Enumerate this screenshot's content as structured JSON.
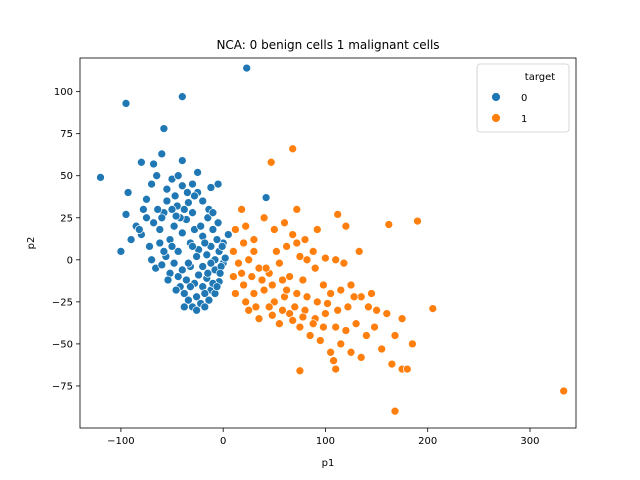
{
  "chart_data": {
    "type": "scatter",
    "title": "NCA: 0 benign cells 1 malignant cells",
    "xlabel": "p1",
    "ylabel": "p2",
    "xlim": [
      -140,
      345
    ],
    "ylim": [
      -100,
      120
    ],
    "xticks": [
      -100,
      0,
      100,
      200,
      300
    ],
    "yticks": [
      -75,
      -50,
      -25,
      0,
      25,
      50,
      75,
      100
    ],
    "grid": false,
    "legend": {
      "title": "target",
      "placement": "top-right",
      "entries": [
        {
          "label": "0",
          "color": "#1f77b4"
        },
        {
          "label": "1",
          "color": "#ff7f0e"
        }
      ]
    },
    "series": [
      {
        "name": "0",
        "color": "#1f77b4",
        "points": [
          [
            -120,
            49
          ],
          [
            -95,
            93
          ],
          [
            -40,
            97
          ],
          [
            23,
            114
          ],
          [
            -58,
            78
          ],
          [
            -93,
            40
          ],
          [
            -80,
            58
          ],
          [
            -68,
            57
          ],
          [
            -60,
            63
          ],
          [
            -50,
            48
          ],
          [
            -40,
            59
          ],
          [
            -25,
            52
          ],
          [
            -5,
            45
          ],
          [
            -12,
            43
          ],
          [
            42,
            37
          ],
          [
            -95,
            27
          ],
          [
            -85,
            20
          ],
          [
            -75,
            36
          ],
          [
            -70,
            45
          ],
          [
            -65,
            50
          ],
          [
            -55,
            42
          ],
          [
            -45,
            32
          ],
          [
            -35,
            40
          ],
          [
            -30,
            28
          ],
          [
            -20,
            35
          ],
          [
            -15,
            25
          ],
          [
            -10,
            18
          ],
          [
            -5,
            22
          ],
          [
            5,
            15
          ],
          [
            0,
            10
          ],
          [
            -100,
            5
          ],
          [
            -90,
            12
          ],
          [
            -80,
            15
          ],
          [
            -72,
            8
          ],
          [
            -68,
            22
          ],
          [
            -62,
            18
          ],
          [
            -58,
            28
          ],
          [
            -52,
            12
          ],
          [
            -48,
            20
          ],
          [
            -44,
            5
          ],
          [
            -40,
            16
          ],
          [
            -36,
            24
          ],
          [
            -32,
            10
          ],
          [
            -28,
            18
          ],
          [
            -24,
            6
          ],
          [
            -20,
            14
          ],
          [
            -16,
            3
          ],
          [
            -12,
            8
          ],
          [
            -8,
            0
          ],
          [
            -4,
            5
          ],
          [
            0,
            -2
          ],
          [
            2,
            1
          ],
          [
            -70,
            0
          ],
          [
            -66,
            -5
          ],
          [
            -60,
            -3
          ],
          [
            -56,
            2
          ],
          [
            -52,
            -8
          ],
          [
            -48,
            -2
          ],
          [
            -44,
            -10
          ],
          [
            -40,
            -6
          ],
          [
            -36,
            -12
          ],
          [
            -32,
            -4
          ],
          [
            -28,
            -14
          ],
          [
            -24,
            -9
          ],
          [
            -20,
            -16
          ],
          [
            -16,
            -11
          ],
          [
            -12,
            -18
          ],
          [
            -8,
            -6
          ],
          [
            -4,
            -13
          ],
          [
            -2,
            -4
          ],
          [
            -38,
            -20
          ],
          [
            -34,
            -24
          ],
          [
            -30,
            -28
          ],
          [
            -26,
            -22
          ],
          [
            -22,
            -26
          ],
          [
            -18,
            -20
          ],
          [
            -14,
            -24
          ],
          [
            -10,
            -14
          ],
          [
            -42,
            -16
          ],
          [
            -46,
            -18
          ],
          [
            -55,
            35
          ],
          [
            -50,
            30
          ],
          [
            -47,
            38
          ],
          [
            -42,
            25
          ],
          [
            -38,
            30
          ],
          [
            -60,
            25
          ],
          [
            -64,
            30
          ],
          [
            -75,
            25
          ],
          [
            -78,
            30
          ],
          [
            -82,
            18
          ],
          [
            -30,
            45
          ],
          [
            -25,
            40
          ],
          [
            -22,
            20
          ],
          [
            -18,
            10
          ],
          [
            -14,
            30
          ],
          [
            -10,
            28
          ],
          [
            -6,
            12
          ],
          [
            -3,
            -8
          ],
          [
            -26,
            2
          ],
          [
            -30,
            8
          ],
          [
            -34,
            -2
          ],
          [
            -50,
            8
          ],
          [
            -54,
            -12
          ],
          [
            -62,
            10
          ],
          [
            -58,
            5
          ],
          [
            -46,
            26
          ],
          [
            -40,
            44
          ],
          [
            -34,
            34
          ],
          [
            -28,
            38
          ],
          [
            -44,
            50
          ],
          [
            -38,
            -28
          ],
          [
            -32,
            -16
          ],
          [
            -20,
            -4
          ],
          [
            -15,
            -8
          ],
          [
            -8,
            -20
          ],
          [
            -26,
            -30
          ],
          [
            -18,
            -28
          ],
          [
            -12,
            -2
          ],
          [
            -6,
            -16
          ],
          [
            -1,
            8
          ]
        ]
      },
      {
        "name": "1",
        "color": "#ff7f0e",
        "points": [
          [
            68,
            66
          ],
          [
            47,
            58
          ],
          [
            72,
            30
          ],
          [
            18,
            30
          ],
          [
            40,
            25
          ],
          [
            22,
            20
          ],
          [
            30,
            12
          ],
          [
            50,
            18
          ],
          [
            60,
            22
          ],
          [
            68,
            15
          ],
          [
            80,
            12
          ],
          [
            92,
            18
          ],
          [
            112,
            27
          ],
          [
            120,
            20
          ],
          [
            100,
            1
          ],
          [
            110,
            0
          ],
          [
            118,
            -2
          ],
          [
            133,
            5
          ],
          [
            88,
            5
          ],
          [
            75,
            2
          ],
          [
            162,
            21
          ],
          [
            190,
            23
          ],
          [
            10,
            5
          ],
          [
            15,
            -2
          ],
          [
            25,
            0
          ],
          [
            35,
            -5
          ],
          [
            45,
            -8
          ],
          [
            55,
            -2
          ],
          [
            65,
            -10
          ],
          [
            78,
            -12
          ],
          [
            90,
            -5
          ],
          [
            98,
            -15
          ],
          [
            105,
            -20
          ],
          [
            115,
            -18
          ],
          [
            125,
            -15
          ],
          [
            135,
            -22
          ],
          [
            145,
            -20
          ],
          [
            150,
            -30
          ],
          [
            160,
            -32
          ],
          [
            175,
            -35
          ],
          [
            205,
            -29
          ],
          [
            20,
            -15
          ],
          [
            30,
            -20
          ],
          [
            40,
            -18
          ],
          [
            50,
            -25
          ],
          [
            60,
            -22
          ],
          [
            70,
            -28
          ],
          [
            80,
            -30
          ],
          [
            90,
            -35
          ],
          [
            100,
            -32
          ],
          [
            110,
            -40
          ],
          [
            120,
            -42
          ],
          [
            130,
            -38
          ],
          [
            140,
            -45
          ],
          [
            148,
            -40
          ],
          [
            168,
            -45
          ],
          [
            185,
            -50
          ],
          [
            25,
            -30
          ],
          [
            35,
            -35
          ],
          [
            45,
            -28
          ],
          [
            55,
            -38
          ],
          [
            65,
            -32
          ],
          [
            75,
            -40
          ],
          [
            85,
            -45
          ],
          [
            95,
            -48
          ],
          [
            105,
            -55
          ],
          [
            115,
            -50
          ],
          [
            125,
            -55
          ],
          [
            135,
            -58
          ],
          [
            155,
            -53
          ],
          [
            165,
            -62
          ],
          [
            175,
            -65
          ],
          [
            180,
            -65
          ],
          [
            75,
            -66
          ],
          [
            110,
            -65
          ],
          [
            108,
            -60
          ],
          [
            168,
            -90
          ],
          [
            333,
            -78
          ],
          [
            10,
            -10
          ],
          [
            12,
            -20
          ],
          [
            18,
            -8
          ],
          [
            28,
            -10
          ],
          [
            38,
            -12
          ],
          [
            48,
            -15
          ],
          [
            58,
            -12
          ],
          [
            62,
            -18
          ],
          [
            72,
            -20
          ],
          [
            82,
            -22
          ],
          [
            92,
            -25
          ],
          [
            102,
            -26
          ],
          [
            42,
            -5
          ],
          [
            52,
            5
          ],
          [
            62,
            8
          ],
          [
            72,
            10
          ],
          [
            82,
            0
          ],
          [
            22,
            -25
          ],
          [
            32,
            -28
          ],
          [
            48,
            -33
          ],
          [
            58,
            -30
          ],
          [
            68,
            -36
          ],
          [
            78,
            -34
          ],
          [
            88,
            -38
          ],
          [
            98,
            -40
          ],
          [
            112,
            -30
          ],
          [
            122,
            -28
          ],
          [
            128,
            -22
          ],
          [
            142,
            -28
          ],
          [
            20,
            10
          ],
          [
            30,
            5
          ],
          [
            12,
            18
          ]
        ]
      }
    ]
  }
}
